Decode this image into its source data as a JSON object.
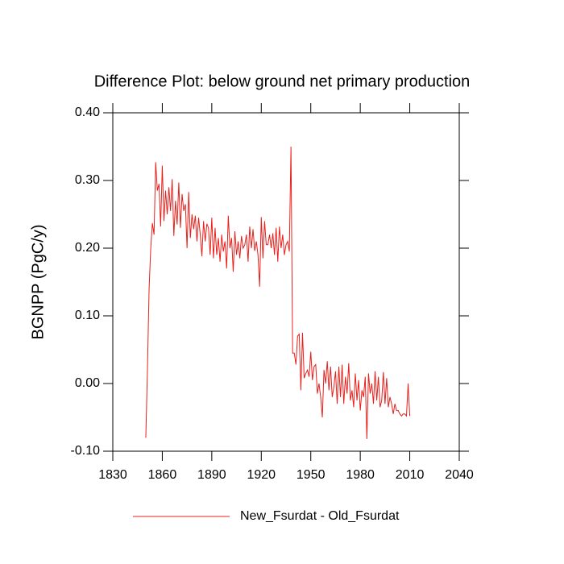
{
  "chart_data": {
    "type": "line",
    "title": "Difference Plot: below ground net primary production",
    "ylabel": "BGNPP  (PgC/y)",
    "x": [
      1850,
      1851,
      1852,
      1853,
      1854,
      1855,
      1856,
      1857,
      1858,
      1859,
      1860,
      1861,
      1862,
      1863,
      1864,
      1865,
      1866,
      1867,
      1868,
      1869,
      1870,
      1871,
      1872,
      1873,
      1874,
      1875,
      1876,
      1877,
      1878,
      1879,
      1880,
      1881,
      1882,
      1883,
      1884,
      1885,
      1886,
      1887,
      1888,
      1889,
      1890,
      1891,
      1892,
      1893,
      1894,
      1895,
      1896,
      1897,
      1898,
      1899,
      1900,
      1901,
      1902,
      1903,
      1904,
      1905,
      1906,
      1907,
      1908,
      1909,
      1910,
      1911,
      1912,
      1913,
      1914,
      1915,
      1916,
      1917,
      1918,
      1919,
      1920,
      1921,
      1922,
      1923,
      1924,
      1925,
      1926,
      1927,
      1928,
      1929,
      1930,
      1931,
      1932,
      1933,
      1934,
      1935,
      1936,
      1937,
      1938,
      1939,
      1940,
      1941,
      1942,
      1943,
      1944,
      1945,
      1946,
      1947,
      1948,
      1949,
      1950,
      1951,
      1952,
      1953,
      1954,
      1955,
      1956,
      1957,
      1958,
      1959,
      1960,
      1961,
      1962,
      1963,
      1964,
      1965,
      1966,
      1967,
      1968,
      1969,
      1970,
      1971,
      1972,
      1973,
      1974,
      1975,
      1976,
      1977,
      1978,
      1979,
      1980,
      1981,
      1982,
      1983,
      1984,
      1985,
      1986,
      1987,
      1988,
      1989,
      1990,
      1991,
      1992,
      1993,
      1994,
      1995,
      1996,
      1997,
      1998,
      1999,
      2000,
      2001,
      2002,
      2003,
      2004,
      2005,
      2006,
      2007,
      2008,
      2009,
      2010
    ],
    "series": [
      {
        "name": "New_Fsurdat - Old_Fsurdat",
        "color": "#e8201c",
        "values": [
          -0.08,
          0.02,
          0.14,
          0.2,
          0.237,
          0.22,
          0.327,
          0.285,
          0.295,
          0.232,
          0.322,
          0.24,
          0.285,
          0.25,
          0.29,
          0.255,
          0.302,
          0.218,
          0.27,
          0.235,
          0.297,
          0.23,
          0.28,
          0.255,
          0.265,
          0.2,
          0.283,
          0.215,
          0.25,
          0.228,
          0.248,
          0.21,
          0.245,
          0.22,
          0.188,
          0.24,
          0.21,
          0.236,
          0.23,
          0.19,
          0.245,
          0.185,
          0.23,
          0.19,
          0.215,
          0.18,
          0.22,
          0.195,
          0.21,
          0.17,
          0.248,
          0.2,
          0.215,
          0.165,
          0.225,
          0.19,
          0.21,
          0.185,
          0.218,
          0.2,
          0.205,
          0.22,
          0.18,
          0.232,
          0.2,
          0.228,
          0.196,
          0.21,
          0.19,
          0.143,
          0.246,
          0.185,
          0.24,
          0.205,
          0.205,
          0.22,
          0.2,
          0.222,
          0.19,
          0.23,
          0.18,
          0.232,
          0.2,
          0.22,
          0.19,
          0.205,
          0.21,
          0.195,
          0.35,
          0.045,
          0.045,
          0.028,
          0.07,
          0.073,
          -0.01,
          0.075,
          0.008,
          0.015,
          0.02,
          0.01,
          0.047,
          0.005,
          0.025,
          0.028,
          -0.015,
          0.0,
          -0.02,
          -0.05,
          0.02,
          0.0,
          0.033,
          -0.01,
          0.025,
          -0.02,
          -0.005,
          0.018,
          -0.03,
          0.025,
          -0.02,
          0.028,
          -0.03,
          0.01,
          -0.015,
          0.03,
          -0.025,
          -0.01,
          -0.035,
          0.015,
          -0.025,
          0.005,
          -0.04,
          -0.01,
          -0.02,
          0.01,
          -0.082,
          0.015,
          -0.015,
          0.0,
          -0.03,
          0.018,
          -0.025,
          0.01,
          -0.035,
          -0.025,
          0.017,
          -0.03,
          0.008,
          -0.035,
          -0.02,
          -0.03,
          -0.045,
          -0.03,
          -0.04,
          -0.04,
          -0.045,
          -0.048,
          -0.045,
          -0.045,
          -0.048,
          0.0,
          -0.048
        ]
      }
    ],
    "xlim": [
      1830,
      2040
    ],
    "xticks": [
      1830,
      1860,
      1890,
      1920,
      1950,
      1980,
      2010,
      2040
    ],
    "ylim": [
      -0.1,
      0.4
    ],
    "yticks": [
      {
        "value": -0.1,
        "label": "-0.10"
      },
      {
        "value": 0,
        "label": "0.00"
      },
      {
        "value": 0.1,
        "label": "0.10"
      },
      {
        "value": 0.2,
        "label": "0.20"
      },
      {
        "value": 0.3,
        "label": "0.30"
      },
      {
        "value": 0.4,
        "label": "0.40"
      }
    ],
    "legend": "bottom"
  }
}
